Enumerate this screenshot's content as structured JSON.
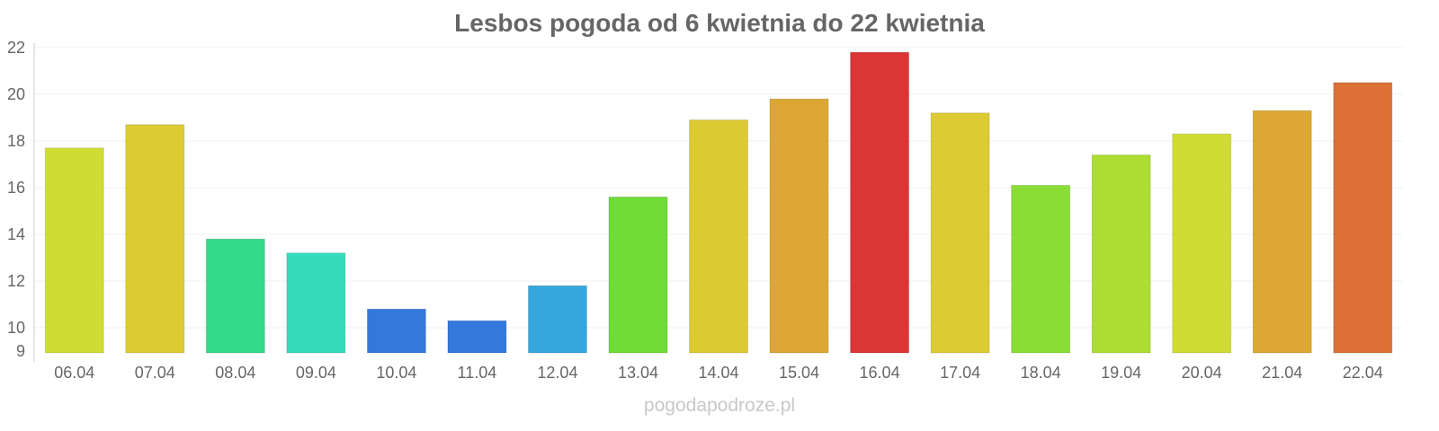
{
  "chart_data": {
    "type": "bar",
    "title": "Lesbos pogoda od 6 kwietnia do 22 kwietnia",
    "xlabel": "",
    "ylabel": "",
    "ylim": [
      9,
      22
    ],
    "yticks": [
      9,
      10,
      12,
      14,
      16,
      18,
      20,
      22
    ],
    "grid": true,
    "categories": [
      "06.04",
      "07.04",
      "08.04",
      "09.04",
      "10.04",
      "11.04",
      "12.04",
      "13.04",
      "14.04",
      "15.04",
      "16.04",
      "17.04",
      "18.04",
      "19.04",
      "20.04",
      "21.04",
      "22.04"
    ],
    "values": [
      17.7,
      18.7,
      13.8,
      13.2,
      10.8,
      10.3,
      11.8,
      15.6,
      18.9,
      19.8,
      21.8,
      19.2,
      16.1,
      17.4,
      18.3,
      19.3,
      20.5
    ],
    "colors": [
      "#cfdd33",
      "#dccb33",
      "#33da88",
      "#35dcbb",
      "#3478dc",
      "#3478dc",
      "#35a7dc",
      "#6edc35",
      "#dcca33",
      "#dca833",
      "#dc3535",
      "#dccb33",
      "#8add35",
      "#acdd33",
      "#cfdc33",
      "#dca833",
      "#dc7035"
    ]
  },
  "footer": "pogodapodroze.pl"
}
